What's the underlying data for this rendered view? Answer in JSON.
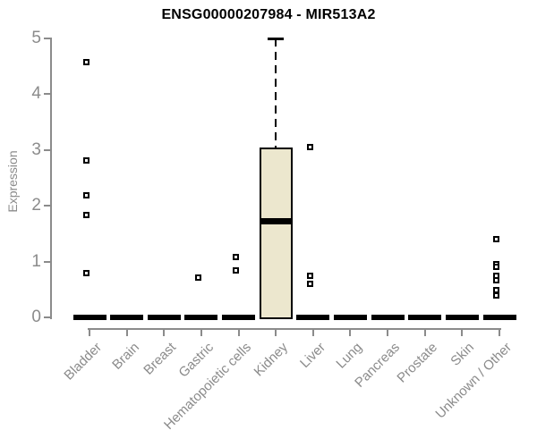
{
  "chart_data": {
    "type": "boxplot",
    "title": "ENSG00000207984 - MIR513A2",
    "ylabel": "Expression",
    "xlabel": "",
    "ylim": [
      0,
      5
    ],
    "yticks": [
      0,
      1,
      2,
      3,
      4,
      5
    ],
    "grid": false,
    "legend": false,
    "categories": [
      "Bladder",
      "Brain",
      "Breast",
      "Gastric",
      "Hematopoietic cells",
      "Kidney",
      "Liver",
      "Lung",
      "Pancreas",
      "Prostate",
      "Skin",
      "Unknown / Other"
    ],
    "boxes": [
      {
        "category": "Bladder",
        "q1": 0,
        "median": 0,
        "q3": 0,
        "whisker_low": 0,
        "whisker_high": 0,
        "outliers": [
          4.57,
          2.8,
          2.18,
          1.83,
          0.78
        ]
      },
      {
        "category": "Brain",
        "q1": 0,
        "median": 0,
        "q3": 0,
        "whisker_low": 0,
        "whisker_high": 0,
        "outliers": []
      },
      {
        "category": "Breast",
        "q1": 0,
        "median": 0,
        "q3": 0,
        "whisker_low": 0,
        "whisker_high": 0,
        "outliers": []
      },
      {
        "category": "Gastric",
        "q1": 0,
        "median": 0,
        "q3": 0,
        "whisker_low": 0,
        "whisker_high": 0,
        "outliers": [
          0.7
        ]
      },
      {
        "category": "Hematopoietic cells",
        "q1": 0,
        "median": 0,
        "q3": 0,
        "whisker_low": 0,
        "whisker_high": 0,
        "outliers": [
          1.07,
          0.83
        ]
      },
      {
        "category": "Kidney",
        "q1": 0,
        "median": 1.73,
        "q3": 3.03,
        "whisker_low": 0,
        "whisker_high": 5.0,
        "outliers": []
      },
      {
        "category": "Liver",
        "q1": 0,
        "median": 0,
        "q3": 0,
        "whisker_low": 0,
        "whisker_high": 0,
        "outliers": [
          3.04,
          0.74,
          0.59
        ]
      },
      {
        "category": "Lung",
        "q1": 0,
        "median": 0,
        "q3": 0,
        "whisker_low": 0,
        "whisker_high": 0,
        "outliers": []
      },
      {
        "category": "Pancreas",
        "q1": 0,
        "median": 0,
        "q3": 0,
        "whisker_low": 0,
        "whisker_high": 0,
        "outliers": []
      },
      {
        "category": "Prostate",
        "q1": 0,
        "median": 0,
        "q3": 0,
        "whisker_low": 0,
        "whisker_high": 0,
        "outliers": []
      },
      {
        "category": "Skin",
        "q1": 0,
        "median": 0,
        "q3": 0,
        "whisker_low": 0,
        "whisker_high": 0,
        "outliers": []
      },
      {
        "category": "Unknown / Other",
        "q1": 0,
        "median": 0,
        "q3": 0,
        "whisker_low": 0,
        "whisker_high": 0,
        "outliers": [
          1.39,
          0.95,
          0.9,
          0.74,
          0.66,
          0.48,
          0.38
        ]
      }
    ],
    "colors": {
      "box_fill": "#ECE7CE",
      "box_border": "#000000",
      "median": "#000000",
      "whisker": "#000000",
      "outlier": "#000000",
      "axis": "#8B8B8B",
      "tick_label": "#8B8B8B",
      "title": "#000000",
      "background": "#FFFFFF"
    }
  }
}
